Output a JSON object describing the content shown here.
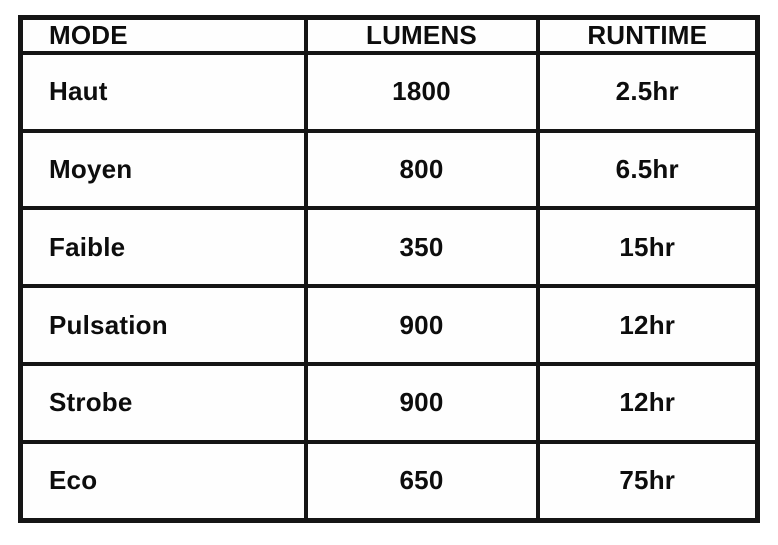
{
  "colors": {
    "border": "#151515",
    "text": "#0d0d0d",
    "cell_background": "#fefefe",
    "page_background": "#ffffff"
  },
  "table": {
    "columns": [
      {
        "key": "mode",
        "label": "MODE",
        "align": "left"
      },
      {
        "key": "lumens",
        "label": "LUMENS",
        "align": "center"
      },
      {
        "key": "runtime",
        "label": "RUNTIME",
        "align": "center"
      }
    ],
    "rows": [
      {
        "mode": "Haut",
        "lumens": "1800",
        "runtime": "2.5hr"
      },
      {
        "mode": "Moyen",
        "lumens": "800",
        "runtime": "6.5hr"
      },
      {
        "mode": "Faible",
        "lumens": "350",
        "runtime": "15hr"
      },
      {
        "mode": "Pulsation",
        "lumens": "900",
        "runtime": "12hr"
      },
      {
        "mode": "Strobe",
        "lumens": "900",
        "runtime": "12hr"
      },
      {
        "mode": "Eco",
        "lumens": "650",
        "runtime": "75hr"
      }
    ]
  },
  "chart_data": {
    "type": "table",
    "title": "",
    "columns": [
      "MODE",
      "LUMENS",
      "RUNTIME"
    ],
    "categories": [
      "Haut",
      "Moyen",
      "Faible",
      "Pulsation",
      "Strobe",
      "Eco"
    ],
    "series": [
      {
        "name": "LUMENS",
        "values": [
          1800,
          800,
          350,
          900,
          900,
          650
        ]
      },
      {
        "name": "RUNTIME",
        "values": [
          "2.5hr",
          "6.5hr",
          "15hr",
          "12hr",
          "12hr",
          "75hr"
        ]
      }
    ]
  }
}
